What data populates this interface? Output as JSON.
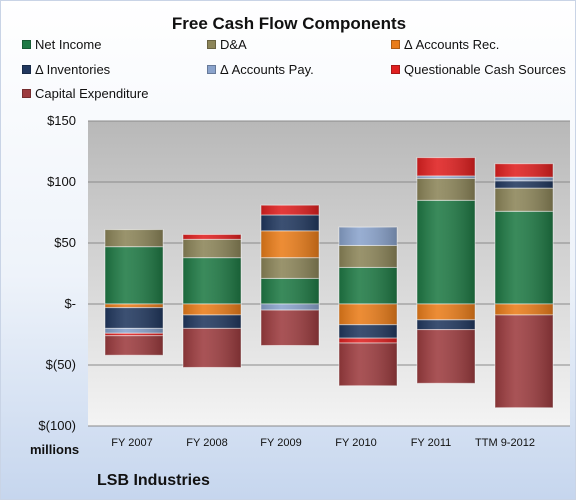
{
  "company": "LSB Industries",
  "units_label": "millions",
  "colors": {
    "net_income": "#1f7a45",
    "da": "#8c8559",
    "accounts_rec": "#ea7d1a",
    "inventories": "#21385f",
    "accounts_pay": "#8aa3cc",
    "questionable": "#e02020",
    "capex": "#9d3c3f"
  },
  "chart_data": {
    "type": "bar",
    "stacked": true,
    "title": "Free Cash Flow Components",
    "xlabel": "",
    "ylabel": "",
    "ylim": [
      -100,
      150
    ],
    "y_ticks": [
      150,
      100,
      50,
      0,
      -50,
      -100
    ],
    "y_tick_labels": [
      "$150",
      "$100",
      "$50",
      "$-",
      "$(50)",
      "$(100)"
    ],
    "grid": true,
    "legend_position": "top",
    "categories": [
      "FY 2007",
      "FY 2008",
      "FY 2009",
      "FY 2010",
      "FY 2011",
      "TTM 9-2012"
    ],
    "series": [
      {
        "key": "net_income",
        "name": "Net Income",
        "values": [
          47,
          38,
          21,
          30,
          85,
          76
        ]
      },
      {
        "key": "da",
        "name": "D&A",
        "values": [
          14,
          15,
          17,
          18,
          18,
          19
        ]
      },
      {
        "key": "accounts_rec",
        "name": "Δ Accounts Rec.",
        "values": [
          -3,
          -9,
          22,
          -17,
          -13,
          -9
        ]
      },
      {
        "key": "inventories",
        "name": "Δ Inventories",
        "values": [
          -17,
          -11,
          13,
          -11,
          -8,
          6
        ]
      },
      {
        "key": "accounts_pay",
        "name": "Δ Accounts Pay.",
        "values": [
          -4,
          0,
          -5,
          15,
          2,
          3
        ]
      },
      {
        "key": "questionable",
        "name": "Questionable Cash Sources",
        "values": [
          -2,
          4,
          8,
          -4,
          15,
          11
        ]
      },
      {
        "key": "capex",
        "name": "Capital Expenditure",
        "values": [
          -16,
          -32,
          -29,
          -35,
          -44,
          -76
        ]
      }
    ]
  }
}
